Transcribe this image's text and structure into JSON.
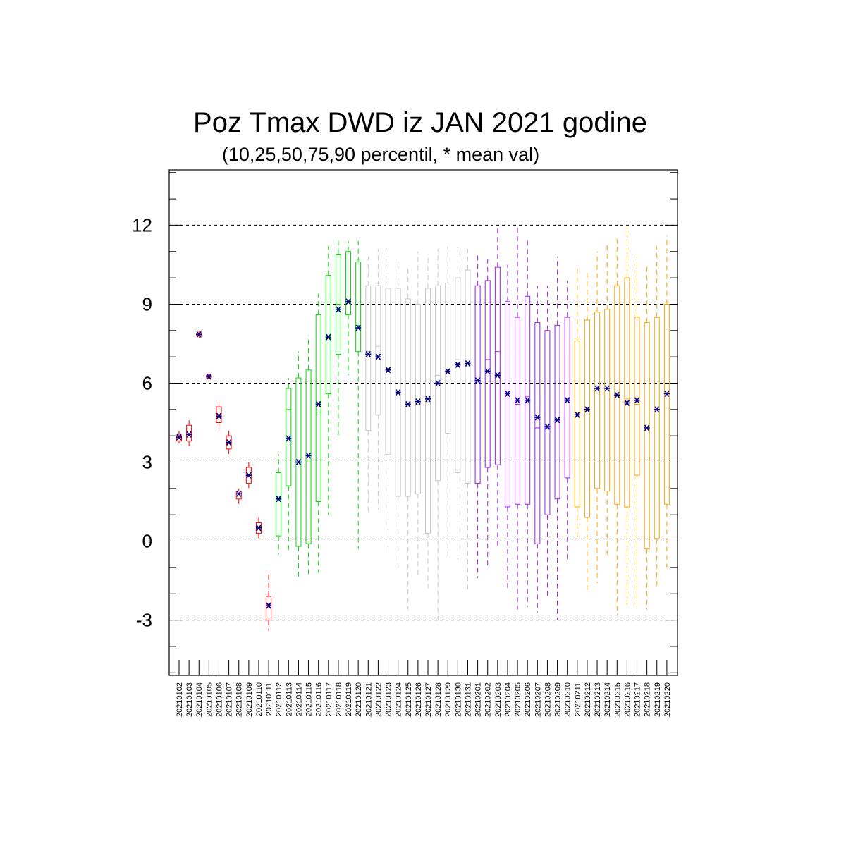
{
  "chart_data": {
    "type": "boxplot",
    "title": "Poz Tmax DWD iz JAN 2021 godine",
    "subtitle": "(10,25,50,75,90 percentil, * mean val)",
    "ylim": [
      -5.1,
      14.1
    ],
    "yticks": [
      -3,
      0,
      3,
      6,
      9,
      12
    ],
    "ytick_labels": [
      "-3",
      "0",
      "3",
      "6",
      "9",
      "12"
    ],
    "grid": true,
    "mean_marker": "*",
    "mean_color": "#000080",
    "group_colors": [
      "#ff0000",
      "#00dd00",
      "#c8c8c8",
      "#a020f0",
      "#ffa500"
    ],
    "categories": [
      "20210102",
      "20210103",
      "20210104",
      "20210105",
      "20210106",
      "20210107",
      "20210108",
      "20210109",
      "20210110",
      "20210111",
      "20210112",
      "20210113",
      "20210114",
      "20210115",
      "20210116",
      "20210117",
      "20210118",
      "20210119",
      "20210120",
      "20210121",
      "20210122",
      "20210123",
      "20210124",
      "20210125",
      "20210126",
      "20210127",
      "20210128",
      "20210129",
      "20210130",
      "20210131",
      "20210201",
      "20210202",
      "20210203",
      "20210204",
      "20210205",
      "20210206",
      "20210207",
      "20210208",
      "20210209",
      "20210210",
      "20210211",
      "20210212",
      "20210213",
      "20210214",
      "20210215",
      "20210216",
      "20210217",
      "20210218",
      "20210219",
      "20210220"
    ],
    "groups": [
      0,
      0,
      0,
      0,
      0,
      0,
      0,
      0,
      0,
      0,
      1,
      1,
      1,
      1,
      1,
      1,
      1,
      1,
      1,
      2,
      2,
      2,
      2,
      2,
      2,
      2,
      2,
      2,
      2,
      2,
      3,
      3,
      3,
      3,
      3,
      3,
      3,
      3,
      3,
      3,
      4,
      4,
      4,
      4,
      4,
      4,
      4,
      4,
      4,
      4
    ],
    "p10": [
      3.7,
      3.6,
      7.7,
      6.1,
      4.1,
      3.3,
      1.4,
      1.9,
      0.1,
      -3.4,
      -0.5,
      -0.4,
      -1.4,
      -1.3,
      -1.2,
      1.0,
      3.9,
      6.3,
      -0.3,
      1.0,
      1.2,
      -0.5,
      -1.2,
      -2.6,
      -1.4,
      -1.8,
      -3.2,
      -0.6,
      -0.7,
      -1.9,
      -1.4,
      -1.0,
      -0.3,
      -1.8,
      -2.6,
      -2.5,
      -2.7,
      -2.2,
      -3.0,
      -0.7,
      0.0,
      -1.9,
      -1.6,
      -0.5,
      -2.8,
      -2.4,
      -2.5,
      -2.6,
      -1.7,
      -1.0
    ],
    "p25": [
      3.8,
      3.8,
      7.8,
      6.2,
      4.5,
      3.5,
      1.6,
      2.2,
      0.3,
      -3.0,
      0.2,
      2.1,
      -0.2,
      -0.1,
      1.5,
      5.6,
      7.1,
      8.6,
      7.2,
      4.2,
      4.8,
      3.3,
      1.7,
      1.7,
      1.8,
      0.3,
      2.3,
      4.1,
      2.6,
      2.2,
      2.2,
      2.8,
      2.9,
      1.3,
      1.4,
      1.4,
      -0.1,
      1.0,
      1.6,
      2.4,
      1.3,
      0.9,
      2.0,
      1.9,
      1.4,
      1.3,
      2.5,
      -0.3,
      0.1,
      1.4
    ],
    "p50": [
      3.9,
      4.0,
      7.9,
      6.3,
      4.8,
      3.7,
      1.8,
      2.5,
      0.5,
      -2.4,
      1.7,
      5.0,
      3.0,
      3.0,
      4.9,
      7.7,
      9.0,
      9.1,
      8.2,
      7.2,
      7.4,
      6.5,
      5.6,
      5.1,
      5.2,
      5.3,
      6.3,
      6.5,
      6.9,
      6.8,
      6.1,
      6.9,
      7.2,
      5.7,
      5.2,
      5.5,
      4.3,
      4.3,
      4.6,
      5.4,
      4.9,
      5.0,
      5.7,
      5.8,
      5.5,
      5.4,
      5.2,
      4.3,
      5.0,
      5.6
    ],
    "p75": [
      4.0,
      4.4,
      7.9,
      6.3,
      5.1,
      4.0,
      1.9,
      2.8,
      0.7,
      -2.1,
      2.6,
      5.8,
      6.2,
      6.5,
      8.6,
      10.1,
      10.9,
      11.0,
      10.6,
      9.7,
      9.7,
      9.6,
      9.6,
      9.2,
      9.0,
      9.6,
      9.7,
      9.8,
      10.0,
      10.3,
      9.7,
      9.9,
      10.4,
      9.1,
      8.5,
      9.3,
      8.3,
      8.0,
      8.2,
      8.5,
      7.6,
      8.4,
      8.7,
      8.8,
      9.7,
      10.0,
      8.5,
      8.3,
      8.5,
      9.0
    ],
    "p90": [
      4.2,
      4.6,
      8.0,
      6.4,
      5.4,
      4.2,
      2.0,
      3.1,
      0.9,
      -1.2,
      3.3,
      6.2,
      7.2,
      7.8,
      9.4,
      11.2,
      11.5,
      11.4,
      11.4,
      10.8,
      11.1,
      11.1,
      10.7,
      10.4,
      11.0,
      10.9,
      11.1,
      11.2,
      11.2,
      11.1,
      10.9,
      10.7,
      11.9,
      10.5,
      11.9,
      11.5,
      9.7,
      9.7,
      10.8,
      9.9,
      10.5,
      10.3,
      11.0,
      11.3,
      11.5,
      12.0,
      10.8,
      10.5,
      11.2,
      11.6
    ],
    "mean": [
      3.95,
      4.05,
      7.85,
      6.25,
      4.75,
      3.75,
      1.8,
      2.5,
      0.5,
      -2.45,
      1.6,
      3.9,
      3.0,
      3.25,
      5.2,
      7.75,
      8.8,
      9.1,
      8.1,
      7.1,
      7.0,
      6.5,
      5.65,
      5.2,
      5.3,
      5.4,
      6.0,
      6.45,
      6.7,
      6.75,
      6.1,
      6.45,
      6.3,
      5.6,
      5.35,
      5.35,
      4.7,
      4.35,
      4.6,
      5.35,
      4.8,
      5.0,
      5.8,
      5.8,
      5.55,
      5.25,
      5.35,
      4.3,
      5.0,
      5.6
    ]
  }
}
